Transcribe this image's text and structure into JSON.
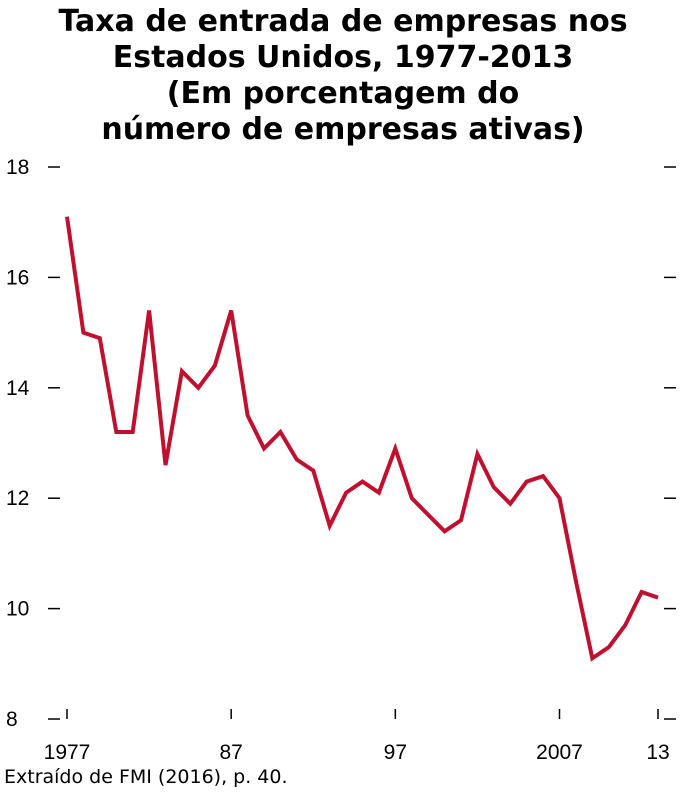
{
  "chart_data": {
    "type": "line",
    "title_lines": [
      "Taxa de entrada de empresas nos",
      "Estados Unidos, 1977-2013",
      "(Em porcentagem do",
      "número de empresas ativas)"
    ],
    "x": [
      1977,
      1978,
      1979,
      1980,
      1981,
      1982,
      1983,
      1984,
      1985,
      1986,
      1987,
      1988,
      1989,
      1990,
      1991,
      1992,
      1993,
      1994,
      1995,
      1996,
      1997,
      1998,
      1999,
      2000,
      2001,
      2002,
      2003,
      2004,
      2005,
      2006,
      2007,
      2008,
      2009,
      2010,
      2011,
      2012,
      2013
    ],
    "values": [
      17.1,
      15.0,
      14.9,
      13.2,
      13.2,
      15.4,
      12.6,
      14.3,
      14.0,
      14.4,
      15.4,
      13.5,
      12.9,
      13.2,
      12.7,
      12.5,
      11.5,
      12.1,
      12.3,
      12.1,
      12.9,
      12.0,
      11.7,
      11.4,
      11.6,
      12.8,
      12.2,
      11.9,
      12.3,
      12.4,
      12.0,
      10.5,
      9.1,
      9.3,
      9.7,
      10.3,
      10.2
    ],
    "xticks": [
      {
        "value": 1977,
        "label": "1977"
      },
      {
        "value": 1987,
        "label": "87"
      },
      {
        "value": 1997,
        "label": "97"
      },
      {
        "value": 2007,
        "label": "2007"
      },
      {
        "value": 2013,
        "label": "13"
      }
    ],
    "yticks": [
      8,
      10,
      12,
      14,
      16,
      18
    ],
    "ylim": [
      8,
      18
    ],
    "xlim": [
      1977,
      2013
    ],
    "line_color": "#C0102F",
    "grid": false
  },
  "source": "Extraído de FMI (2016), p. 40."
}
